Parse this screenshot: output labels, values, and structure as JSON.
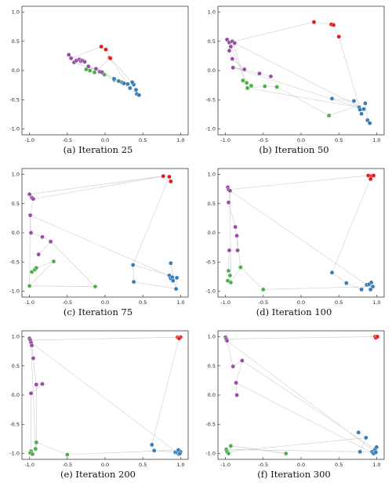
{
  "chart_data": [
    {
      "type": "scatter",
      "caption": "(a) Iteration 25",
      "xlim": [
        -1.1,
        1.1
      ],
      "ylim": [
        -1.1,
        1.1
      ],
      "xticks": [
        -1.0,
        -0.5,
        0.0,
        0.5,
        1.0
      ],
      "yticks": [
        1.0,
        0.5,
        0.0,
        -0.5,
        -1.0
      ],
      "grid": false,
      "series": [
        {
          "color": "#e41a1c",
          "points": [
            [
              -0.05,
              0.41
            ],
            [
              0.01,
              0.36
            ],
            [
              0.06,
              0.22
            ],
            [
              0.07,
              0.21
            ]
          ]
        },
        {
          "color": "#984ea3",
          "points": [
            [
              -0.48,
              0.27
            ],
            [
              -0.45,
              0.21
            ],
            [
              -0.41,
              0.14
            ],
            [
              -0.38,
              0.17
            ],
            [
              -0.34,
              0.19
            ],
            [
              -0.32,
              0.16
            ],
            [
              -0.3,
              0.17
            ],
            [
              -0.27,
              0.15
            ],
            [
              -0.22,
              0.07
            ],
            [
              -0.12,
              0.03
            ],
            [
              -0.07,
              -0.02
            ],
            [
              -0.04,
              -0.03
            ]
          ]
        },
        {
          "color": "#4daf4a",
          "points": [
            [
              -0.25,
              0.02
            ],
            [
              -0.2,
              0.0
            ],
            [
              -0.14,
              -0.03
            ],
            [
              -0.01,
              -0.07
            ],
            [
              0.12,
              -0.16
            ],
            [
              0.22,
              -0.2
            ]
          ]
        },
        {
          "color": "#377eb8",
          "points": [
            [
              0.12,
              -0.14
            ],
            [
              0.18,
              -0.18
            ],
            [
              0.25,
              -0.22
            ],
            [
              0.3,
              -0.23
            ],
            [
              0.38,
              -0.24
            ],
            [
              0.33,
              -0.3
            ],
            [
              0.41,
              -0.33
            ],
            [
              0.42,
              -0.4
            ],
            [
              0.45,
              -0.42
            ],
            [
              0.36,
              -0.2
            ]
          ]
        }
      ]
    },
    {
      "type": "scatter",
      "caption": "(b) Iteration 50",
      "xlim": [
        -1.1,
        1.1
      ],
      "ylim": [
        -1.1,
        1.1
      ],
      "xticks": [
        -1.0,
        -0.5,
        0.0,
        0.5,
        1.0
      ],
      "yticks": [
        1.0,
        0.5,
        0.0,
        -0.5,
        -1.0
      ],
      "grid": false,
      "series": [
        {
          "color": "#e41a1c",
          "points": [
            [
              0.17,
              0.83
            ],
            [
              0.4,
              0.79
            ],
            [
              0.43,
              0.78
            ],
            [
              0.5,
              0.58
            ]
          ]
        },
        {
          "color": "#984ea3",
          "points": [
            [
              -0.98,
              0.53
            ],
            [
              -0.95,
              0.48
            ],
            [
              -0.93,
              0.41
            ],
            [
              -0.91,
              0.5
            ],
            [
              -0.88,
              0.47
            ],
            [
              -0.95,
              0.34
            ],
            [
              -0.91,
              0.2
            ],
            [
              -0.75,
              0.02
            ],
            [
              -0.9,
              0.05
            ],
            [
              -0.55,
              -0.05
            ],
            [
              -0.4,
              -0.1
            ]
          ]
        },
        {
          "color": "#4daf4a",
          "points": [
            [
              -0.77,
              -0.17
            ],
            [
              -0.72,
              -0.21
            ],
            [
              -0.66,
              -0.26
            ],
            [
              -0.71,
              -0.3
            ],
            [
              -0.48,
              -0.27
            ],
            [
              -0.32,
              -0.28
            ],
            [
              0.37,
              -0.77
            ]
          ]
        },
        {
          "color": "#377eb8",
          "points": [
            [
              0.41,
              -0.48
            ],
            [
              0.7,
              -0.52
            ],
            [
              0.77,
              -0.63
            ],
            [
              0.78,
              -0.67
            ],
            [
              0.8,
              -0.74
            ],
            [
              0.83,
              -0.66
            ],
            [
              0.85,
              -0.56
            ],
            [
              0.88,
              -0.85
            ],
            [
              0.91,
              -0.9
            ]
          ]
        }
      ]
    },
    {
      "type": "scatter",
      "caption": "(c) Iteration 75",
      "xlim": [
        -1.1,
        1.1
      ],
      "ylim": [
        -1.1,
        1.1
      ],
      "xticks": [
        -1.0,
        -0.5,
        0.0,
        0.5,
        1.0
      ],
      "yticks": [
        1.0,
        0.5,
        0.0,
        -0.5,
        -1.0
      ],
      "grid": false,
      "series": [
        {
          "color": "#e41a1c",
          "points": [
            [
              0.77,
              0.97
            ],
            [
              0.85,
              0.96
            ],
            [
              0.87,
              0.88
            ]
          ]
        },
        {
          "color": "#984ea3",
          "points": [
            [
              -1.0,
              0.66
            ],
            [
              -0.97,
              0.6
            ],
            [
              -0.95,
              0.58
            ],
            [
              -0.99,
              0.3
            ],
            [
              -0.98,
              0.0
            ],
            [
              -0.83,
              -0.07
            ],
            [
              -0.72,
              -0.15
            ],
            [
              -0.88,
              -0.37
            ]
          ]
        },
        {
          "color": "#4daf4a",
          "points": [
            [
              -0.97,
              -0.67
            ],
            [
              -0.93,
              -0.63
            ],
            [
              -0.91,
              -0.6
            ],
            [
              -0.68,
              -0.49
            ],
            [
              -1.0,
              -0.91
            ],
            [
              -0.13,
              -0.92
            ]
          ]
        },
        {
          "color": "#377eb8",
          "points": [
            [
              0.38,
              -0.84
            ],
            [
              0.37,
              -0.55
            ],
            [
              0.85,
              -0.73
            ],
            [
              0.87,
              -0.78
            ],
            [
              0.89,
              -0.76
            ],
            [
              0.9,
              -0.82
            ],
            [
              0.95,
              -0.77
            ],
            [
              0.94,
              -0.96
            ],
            [
              0.87,
              -0.52
            ]
          ]
        }
      ]
    },
    {
      "type": "scatter",
      "caption": "(d) Iteration 100",
      "xlim": [
        -1.1,
        1.1
      ],
      "ylim": [
        -1.1,
        1.1
      ],
      "xticks": [
        -1.0,
        -0.5,
        0.0,
        0.5,
        1.0
      ],
      "yticks": [
        1.0,
        0.5,
        0.0,
        -0.5,
        -1.0
      ],
      "grid": false,
      "series": [
        {
          "color": "#e41a1c",
          "points": [
            [
              0.89,
              0.98
            ],
            [
              0.93,
              0.97
            ],
            [
              0.96,
              0.98
            ],
            [
              0.92,
              0.92
            ]
          ]
        },
        {
          "color": "#984ea3",
          "points": [
            [
              -0.97,
              0.78
            ],
            [
              -0.96,
              0.74
            ],
            [
              -0.94,
              0.72
            ],
            [
              -0.96,
              0.52
            ],
            [
              -0.87,
              0.1
            ],
            [
              -0.85,
              -0.05
            ],
            [
              -0.84,
              -0.3
            ],
            [
              -0.95,
              -0.3
            ]
          ]
        },
        {
          "color": "#4daf4a",
          "points": [
            [
              -0.96,
              -0.65
            ],
            [
              -0.94,
              -0.73
            ],
            [
              -0.97,
              -0.82
            ],
            [
              -0.93,
              -0.85
            ],
            [
              -0.8,
              -0.59
            ],
            [
              -0.5,
              -0.97
            ]
          ]
        },
        {
          "color": "#377eb8",
          "points": [
            [
              0.41,
              -0.68
            ],
            [
              0.6,
              -0.86
            ],
            [
              0.8,
              -0.97
            ],
            [
              0.87,
              -0.89
            ],
            [
              0.9,
              -0.88
            ],
            [
              0.93,
              -0.85
            ],
            [
              0.95,
              -0.92
            ],
            [
              0.92,
              -0.97
            ]
          ]
        }
      ]
    },
    {
      "type": "scatter",
      "caption": "(e) Iteration 200",
      "xlim": [
        -1.1,
        1.1
      ],
      "ylim": [
        -1.1,
        1.1
      ],
      "xticks": [
        -1.0,
        -0.5,
        0.0,
        0.5,
        1.0
      ],
      "yticks": [
        1.0,
        0.5,
        0.0,
        -0.5,
        -1.0
      ],
      "grid": false,
      "series": [
        {
          "color": "#e41a1c",
          "points": [
            [
              0.96,
              0.99
            ],
            [
              0.98,
              0.98
            ],
            [
              1.0,
              0.99
            ],
            [
              0.98,
              0.97
            ]
          ]
        },
        {
          "color": "#984ea3",
          "points": [
            [
              -1.0,
              0.97
            ],
            [
              -0.99,
              0.94
            ],
            [
              -0.98,
              0.9
            ],
            [
              -0.97,
              0.85
            ],
            [
              -0.95,
              0.63
            ],
            [
              -0.91,
              0.18
            ],
            [
              -0.83,
              0.19
            ],
            [
              -0.98,
              0.03
            ]
          ]
        },
        {
          "color": "#4daf4a",
          "points": [
            [
              -0.98,
              -0.96
            ],
            [
              -0.99,
              -0.99
            ],
            [
              -0.96,
              -1.01
            ],
            [
              -0.92,
              -0.92
            ],
            [
              -0.91,
              -0.81
            ],
            [
              -0.5,
              -1.02
            ]
          ]
        },
        {
          "color": "#377eb8",
          "points": [
            [
              0.62,
              -0.85
            ],
            [
              0.65,
              -0.95
            ],
            [
              0.93,
              -0.98
            ],
            [
              0.96,
              -0.99
            ],
            [
              0.98,
              -1.01
            ],
            [
              1.0,
              -0.97
            ],
            [
              0.97,
              -0.94
            ],
            [
              0.99,
              -1.0
            ]
          ]
        }
      ]
    },
    {
      "type": "scatter",
      "caption": "(f) Iteration 300",
      "xlim": [
        -1.1,
        1.1
      ],
      "ylim": [
        -1.1,
        1.1
      ],
      "xticks": [
        -1.0,
        -0.5,
        0.0,
        0.5,
        1.0
      ],
      "yticks": [
        1.0,
        0.5,
        0.0,
        -0.5,
        -1.0
      ],
      "grid": false,
      "series": [
        {
          "color": "#e41a1c",
          "points": [
            [
              0.98,
              1.0
            ],
            [
              1.0,
              0.99
            ],
            [
              0.99,
              0.98
            ],
            [
              1.01,
              1.0
            ]
          ]
        },
        {
          "color": "#984ea3",
          "points": [
            [
              -1.0,
              0.99
            ],
            [
              -0.99,
              0.96
            ],
            [
              -0.98,
              0.93
            ],
            [
              -0.9,
              0.49
            ],
            [
              -0.78,
              0.59
            ],
            [
              -0.86,
              0.21
            ],
            [
              -0.85,
              0.0
            ]
          ]
        },
        {
          "color": "#4daf4a",
          "points": [
            [
              -0.99,
              -0.93
            ],
            [
              -0.98,
              -0.97
            ],
            [
              -0.96,
              -1.0
            ],
            [
              -0.93,
              -0.87
            ],
            [
              -0.2,
              -1.0
            ]
          ]
        },
        {
          "color": "#377eb8",
          "points": [
            [
              0.76,
              -0.64
            ],
            [
              0.86,
              -0.73
            ],
            [
              0.78,
              -0.97
            ],
            [
              0.94,
              -0.97
            ],
            [
              0.96,
              -1.0
            ],
            [
              0.98,
              -0.93
            ],
            [
              1.0,
              -0.89
            ],
            [
              0.99,
              -0.98
            ]
          ]
        }
      ]
    }
  ]
}
